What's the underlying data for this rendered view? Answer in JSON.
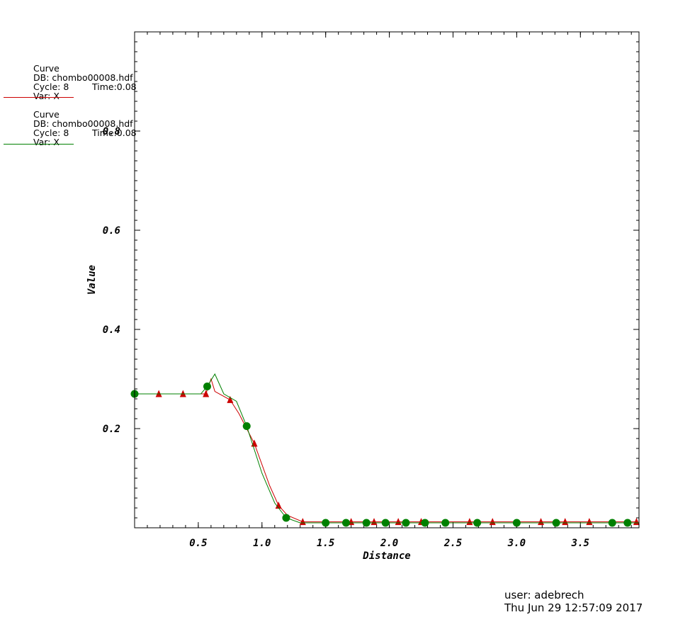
{
  "chart_data": {
    "type": "line",
    "xlabel": "Distance",
    "ylabel": "Value",
    "xlim": [
      0,
      3.96
    ],
    "ylim": [
      0,
      1.0
    ],
    "x_ticks": [
      "0.5",
      "1.0",
      "1.5",
      "2.0",
      "2.5",
      "3.0",
      "3.5"
    ],
    "x_tick_values": [
      0.5,
      1.0,
      1.5,
      2.0,
      2.5,
      3.0,
      3.5
    ],
    "y_ticks": [
      "0.2",
      "0.4",
      "0.6",
      "0.8"
    ],
    "y_tick_values": [
      0.2,
      0.4,
      0.6,
      0.8
    ],
    "series": [
      {
        "color": "#cc0000",
        "marker": "triangle",
        "x": [
          0.0,
          0.19,
          0.38,
          0.56,
          0.6,
          0.63,
          0.75,
          0.82,
          0.94,
          1.06,
          1.13,
          1.2,
          1.32,
          1.5,
          1.7,
          1.88,
          2.07,
          2.25,
          2.44,
          2.63,
          2.81,
          3.0,
          3.19,
          3.38,
          3.57,
          3.75,
          3.94
        ],
        "y": [
          0.27,
          0.27,
          0.27,
          0.27,
          0.3,
          0.275,
          0.258,
          0.23,
          0.17,
          0.085,
          0.045,
          0.025,
          0.012,
          0.012,
          0.012,
          0.012,
          0.012,
          0.012,
          0.012,
          0.012,
          0.012,
          0.012,
          0.012,
          0.012,
          0.012,
          0.012,
          0.012
        ],
        "marker_x": [
          0.19,
          0.38,
          0.56,
          0.75,
          0.94,
          1.13,
          1.32,
          1.7,
          1.88,
          2.07,
          2.25,
          2.63,
          2.81,
          3.19,
          3.38,
          3.57,
          3.94
        ],
        "marker_y": [
          0.27,
          0.27,
          0.27,
          0.258,
          0.17,
          0.045,
          0.012,
          0.012,
          0.012,
          0.012,
          0.012,
          0.012,
          0.012,
          0.012,
          0.012,
          0.012,
          0.012
        ]
      },
      {
        "color": "#008000",
        "marker": "circle",
        "x": [
          0.0,
          0.2,
          0.4,
          0.52,
          0.57,
          0.63,
          0.7,
          0.8,
          0.88,
          1.0,
          1.1,
          1.19,
          1.3,
          1.5,
          1.66,
          1.82,
          1.97,
          2.13,
          2.28,
          2.44,
          2.69,
          3.0,
          3.31,
          3.75,
          3.87,
          3.96
        ],
        "y": [
          0.27,
          0.27,
          0.27,
          0.27,
          0.285,
          0.31,
          0.27,
          0.255,
          0.205,
          0.11,
          0.05,
          0.02,
          0.01,
          0.01,
          0.01,
          0.01,
          0.01,
          0.01,
          0.01,
          0.01,
          0.01,
          0.01,
          0.01,
          0.01,
          0.01,
          0.01
        ],
        "marker_x": [
          0.0,
          0.57,
          0.88,
          1.19,
          1.5,
          1.66,
          1.82,
          1.97,
          2.13,
          2.28,
          2.44,
          2.69,
          3.0,
          3.31,
          3.75,
          3.87
        ],
        "marker_y": [
          0.27,
          0.285,
          0.205,
          0.02,
          0.01,
          0.01,
          0.01,
          0.01,
          0.01,
          0.01,
          0.01,
          0.01,
          0.01,
          0.01,
          0.01,
          0.01
        ]
      }
    ]
  },
  "legend": [
    {
      "line1": "Curve",
      "line2": "DB: chombo00008.hdf",
      "line3a": "Cycle: 8",
      "line3b": "Time:0.08",
      "line4": "Var: X",
      "color": "#cc0000"
    },
    {
      "line1": "Curve",
      "line2": "DB: chombo00008.hdf",
      "line3a": "Cycle: 8",
      "line3b": "Time:0.08",
      "line4": "Var: X",
      "color": "#008000"
    }
  ],
  "footer": {
    "user": "user: adebrech",
    "timestamp": "Thu Jun 29 12:57:09 2017"
  }
}
